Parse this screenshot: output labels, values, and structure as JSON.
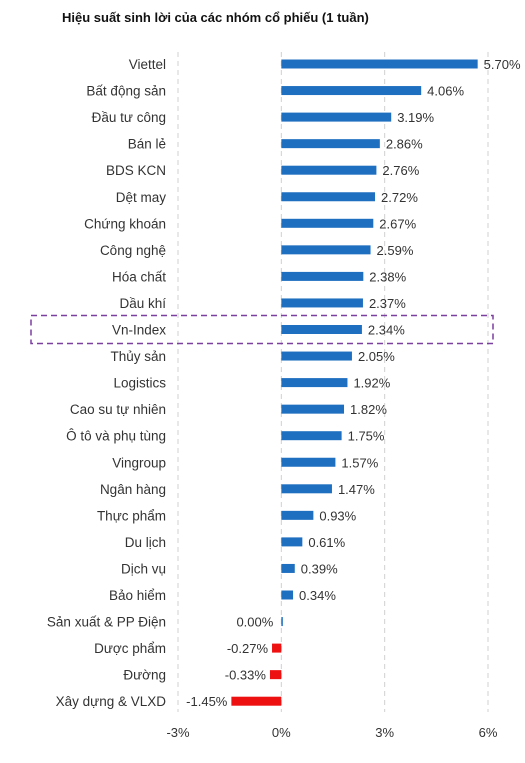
{
  "chart_data": {
    "type": "bar",
    "orientation": "horizontal",
    "title": "Hiệu suất sinh lời của các nhóm cổ phiếu (1 tuần)",
    "categories": [
      "Viettel",
      "Bất động sản",
      "Đầu tư công",
      "Bán lẻ",
      "BDS KCN",
      "Dệt may",
      "Chứng khoán",
      "Công nghệ",
      "Hóa chất",
      "Dầu khí",
      "Vn-Index",
      "Thủy sản",
      "Logistics",
      "Cao su tự nhiên",
      "Ô tô và phụ tùng",
      "Vingroup",
      "Ngân hàng",
      "Thực phẩm",
      "Du lịch",
      "Dịch vụ",
      "Bảo hiểm",
      "Sản xuất & PP Điện",
      "Dược phẩm",
      "Đường",
      "Xây dựng & VLXD"
    ],
    "values": [
      5.7,
      4.06,
      3.19,
      2.86,
      2.76,
      2.72,
      2.67,
      2.59,
      2.38,
      2.37,
      2.34,
      2.05,
      1.92,
      1.82,
      1.75,
      1.57,
      1.47,
      0.93,
      0.61,
      0.39,
      0.34,
      0.0,
      -0.27,
      -0.33,
      -1.45
    ],
    "value_labels": [
      "5.70%",
      "4.06%",
      "3.19%",
      "2.86%",
      "2.76%",
      "2.72%",
      "2.67%",
      "2.59%",
      "2.38%",
      "2.37%",
      "2.34%",
      "2.05%",
      "1.92%",
      "1.82%",
      "1.75%",
      "1.57%",
      "1.47%",
      "0.93%",
      "0.61%",
      "0.39%",
      "0.34%",
      "0.00%",
      "-0.27%",
      "-0.33%",
      "-1.45%"
    ],
    "xlim": [
      -3,
      6
    ],
    "xticks": [
      -3,
      0,
      3,
      6
    ],
    "xtick_labels": [
      "-3%",
      "0%",
      "3%",
      "6%"
    ],
    "grid": "vertical-dashed",
    "highlighted_category": "Vn-Index",
    "colors": {
      "positive": "#1F6FC0",
      "negative": "#EE1111",
      "highlight_box": "#7B3FA0",
      "grid": "#D0D0D0",
      "text": "#333333"
    }
  }
}
